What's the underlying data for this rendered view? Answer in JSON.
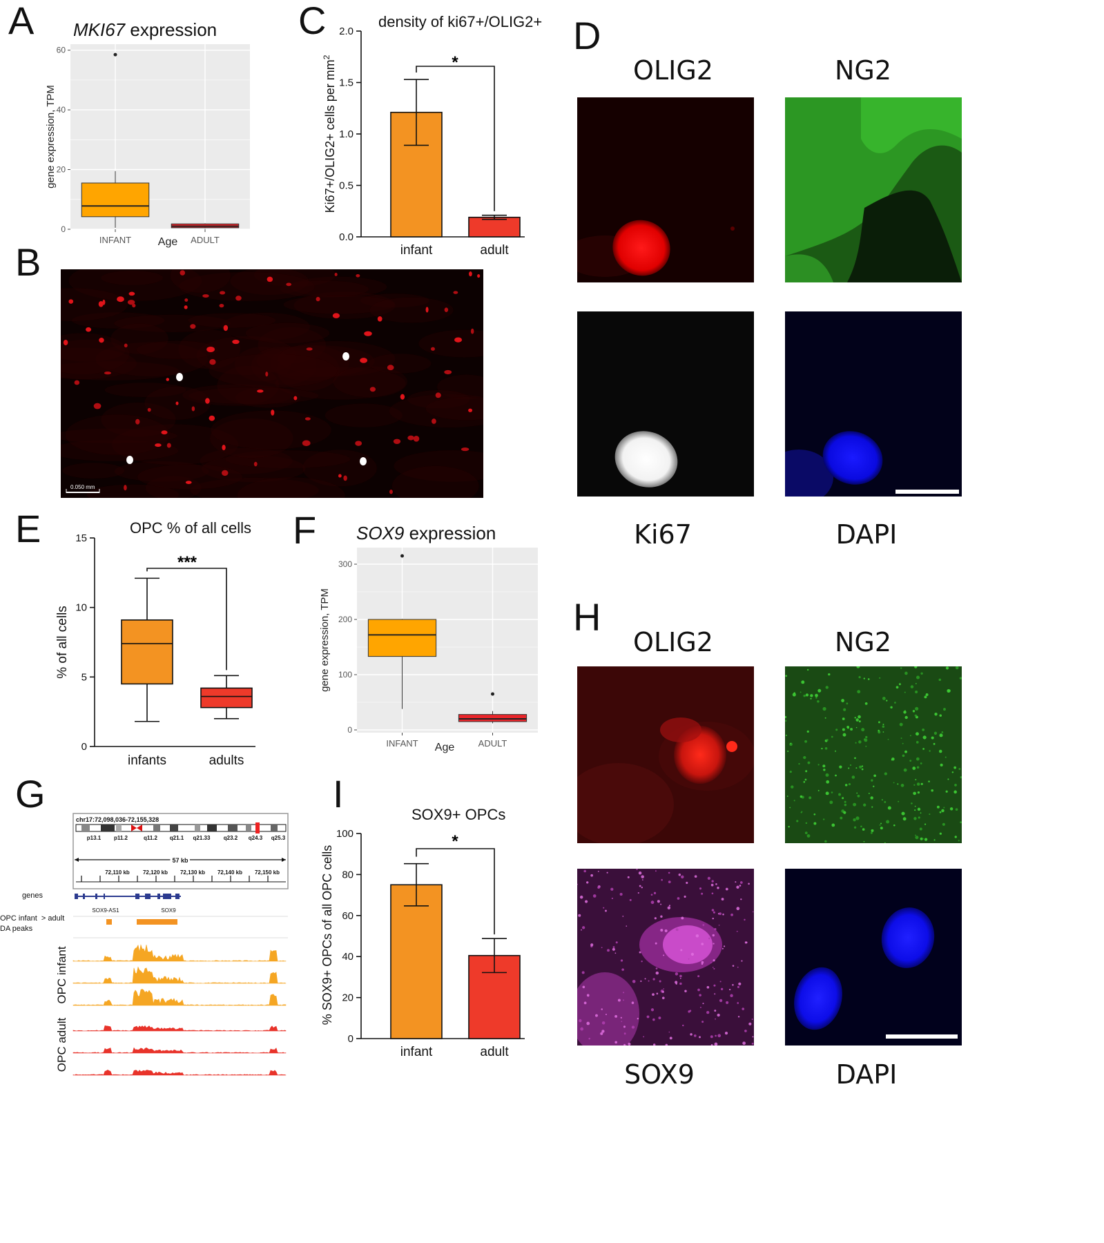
{
  "panels": {
    "A": {
      "letter": "A",
      "title_gene": "MKI67",
      "title_rest": " expression",
      "ylabel": "gene expression, TPM",
      "xlabel": "Age"
    },
    "B": {
      "letter": "B",
      "scale_bar": "0.050 mm"
    },
    "C": {
      "letter": "C",
      "title": "density of ki67+/OLIG2+",
      "ylabel_main": "Ki67+/OLIG2+ cells per mm",
      "ylabel_sup": "2",
      "significance": "*"
    },
    "D": {
      "letter": "D",
      "labels": [
        "OLIG2",
        "NG2",
        "Ki67",
        "DAPI"
      ]
    },
    "E": {
      "letter": "E",
      "title": "OPC % of all cells",
      "ylabel": "% of all cells",
      "significance": "***"
    },
    "F": {
      "letter": "F",
      "title_gene": "SOX9",
      "title_rest": " expression",
      "ylabel": "gene expression, TPM",
      "xlabel": "Age"
    },
    "G": {
      "letter": "G",
      "locus": "chr17:72,098,036-72,155,328",
      "bands": [
        "p13.1",
        "p11.2",
        "q11.2",
        "q21.1",
        "q21.33",
        "q23.2",
        "q24.3",
        "q25.3"
      ],
      "span": "57 kb",
      "kb_ticks": [
        "72,110 kb",
        "72,120 kb",
        "72,130 kb",
        "72,140 kb",
        "72,150 kb"
      ],
      "genes_label": "genes",
      "gene_names": [
        "SOX9-AS1",
        "SOX9"
      ],
      "da_label_1": "OPC infant  > adult",
      "da_label_2": "DA peaks",
      "track_infant": "OPC infant",
      "track_adult": "OPC adult"
    },
    "H": {
      "letter": "H",
      "labels": [
        "OLIG2",
        "NG2",
        "SOX9",
        "DAPI"
      ]
    },
    "I": {
      "letter": "I",
      "title": "SOX9+ OPCs",
      "ylabel": "% SOX9+ OPCs of all OPC cells",
      "significance": "*"
    }
  },
  "chart_data": [
    {
      "panel": "A",
      "type": "box",
      "categories": [
        "INFANT",
        "ADULT"
      ],
      "ylim": [
        0,
        62
      ],
      "yticks": [
        0,
        20,
        40,
        60
      ],
      "boxes": [
        {
          "category": "INFANT",
          "whisker_low": 0.5,
          "q1": 4.2,
          "median": 7.8,
          "q3": 15.5,
          "whisker_high": 19.5,
          "outliers": [
            58.5
          ],
          "color": "#FFA500"
        },
        {
          "category": "ADULT",
          "whisker_low": 0.3,
          "q1": 0.5,
          "median": 1.0,
          "q3": 1.8,
          "whisker_high": 2.0,
          "outliers": [],
          "color": "#E8252A"
        }
      ],
      "grid": true
    },
    {
      "panel": "C",
      "type": "bar",
      "categories": [
        "infant",
        "adult"
      ],
      "values": [
        1.21,
        0.19
      ],
      "errors": [
        0.32,
        0.02
      ],
      "colors": [
        "#F39322",
        "#EE3A2A"
      ],
      "ylim": [
        0,
        2.0
      ],
      "yticks": [
        "0.0",
        "0.5",
        "1.0",
        "1.5",
        "2.0"
      ]
    },
    {
      "panel": "E",
      "type": "box",
      "categories": [
        "infants",
        "adults"
      ],
      "ylim": [
        0,
        15
      ],
      "yticks": [
        0,
        5,
        10,
        15
      ],
      "boxes": [
        {
          "category": "infants",
          "whisker_low": 1.8,
          "q1": 4.5,
          "median": 7.4,
          "q3": 9.1,
          "whisker_high": 12.1,
          "color": "#F39322"
        },
        {
          "category": "adults",
          "whisker_low": 2.0,
          "q1": 2.8,
          "median": 3.6,
          "q3": 4.2,
          "whisker_high": 5.1,
          "color": "#EE3A2A"
        }
      ]
    },
    {
      "panel": "F",
      "type": "box",
      "categories": [
        "INFANT",
        "ADULT"
      ],
      "ylim": [
        -5,
        330
      ],
      "yticks": [
        0,
        100,
        200,
        300
      ],
      "boxes": [
        {
          "category": "INFANT",
          "whisker_low": 38,
          "q1": 133,
          "median": 172,
          "q3": 200,
          "whisker_high": 201,
          "outliers": [
            315
          ],
          "color": "#FFA500"
        },
        {
          "category": "ADULT",
          "whisker_low": 12,
          "q1": 15,
          "median": 20,
          "q3": 28,
          "whisker_high": 34,
          "outliers": [
            65
          ],
          "color": "#E8252A"
        }
      ],
      "grid": true
    },
    {
      "panel": "I",
      "type": "bar",
      "categories": [
        "infant",
        "adult"
      ],
      "values": [
        75,
        40.5
      ],
      "errors": [
        10.3,
        8.3
      ],
      "colors": [
        "#F39322",
        "#EE3A2A"
      ],
      "ylim": [
        0,
        100
      ],
      "yticks": [
        0,
        20,
        40,
        60,
        80,
        100
      ]
    }
  ],
  "colors": {
    "orange": "#F39322",
    "red": "#EE3A2A",
    "gg_bg": "#EBEBEB",
    "track_orange": "#F5A623",
    "track_red": "#E8332A"
  }
}
